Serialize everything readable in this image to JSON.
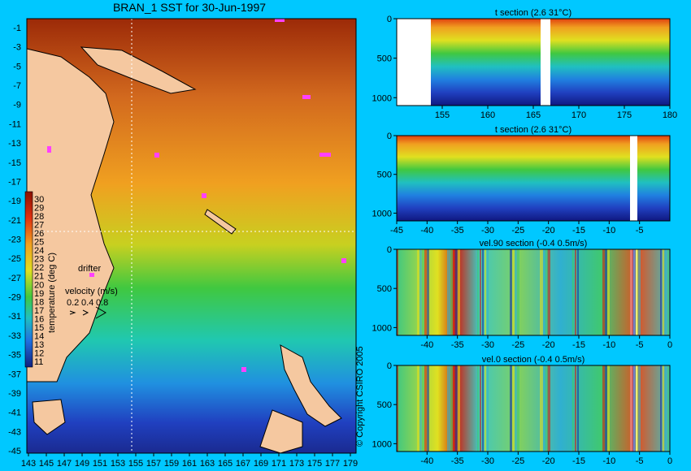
{
  "map": {
    "title": "BRAN_1 SST for 30-Jun-1997",
    "lon_ticks": [
      "143",
      "145",
      "147",
      "149",
      "151",
      "153",
      "155",
      "157",
      "159",
      "161",
      "163",
      "165",
      "167",
      "169",
      "171",
      "173",
      "175",
      "177",
      "179"
    ],
    "lat_ticks": [
      "-1",
      "-3",
      "-5",
      "-7",
      "-9",
      "-11",
      "-13",
      "-15",
      "-17",
      "-19",
      "-21",
      "-23",
      "-25",
      "-27",
      "-29",
      "-31",
      "-33",
      "-35",
      "-37",
      "-39",
      "-41",
      "-43",
      "-45"
    ],
    "colorbar_label": "temperature (deg C)",
    "colorbar_ticks": [
      "30",
      "29",
      "28",
      "27",
      "26",
      "25",
      "24",
      "23",
      "22",
      "21",
      "20",
      "19",
      "18",
      "17",
      "16",
      "15",
      "14",
      "13",
      "12",
      "11"
    ],
    "drifter_label": "drifter",
    "velocity_label": "velocity (m/s)",
    "velocity_ticks": [
      "0.2",
      "0.4",
      "0.8"
    ],
    "copyright": "© Copyright CSIRO 2005",
    "colors": {
      "ocean_warm": "#d2691e",
      "ocean_cold": "#1e3cc8",
      "land": "#f5c8a0",
      "background": "#00c8ff",
      "drifter": "#ff40ff"
    }
  },
  "chart_data": [
    {
      "type": "heatmap",
      "title": "t section (2.6     31°C)",
      "x_ticks": [
        "155",
        "160",
        "165",
        "170",
        "175",
        "180"
      ],
      "y_ticks": [
        "0",
        "500",
        "1000"
      ],
      "xlim": [
        150,
        180
      ],
      "ylim": [
        1100,
        0
      ]
    },
    {
      "type": "heatmap",
      "title": "t section (2.6     31°C)",
      "x_ticks": [
        "-45",
        "-40",
        "-35",
        "-30",
        "-25",
        "-20",
        "-15",
        "-10",
        "-5"
      ],
      "y_ticks": [
        "0",
        "500",
        "1000"
      ],
      "xlim": [
        -45,
        0
      ],
      "ylim": [
        1100,
        0
      ]
    },
    {
      "type": "heatmap",
      "title": "vel.90 section (-0.4     0.5m/s)",
      "x_ticks": [
        "-40",
        "-35",
        "-30",
        "-25",
        "-20",
        "-15",
        "-10",
        "-5",
        "0"
      ],
      "y_ticks": [
        "0",
        "500",
        "1000"
      ],
      "xlim": [
        -45,
        0
      ],
      "ylim": [
        1100,
        0
      ]
    },
    {
      "type": "heatmap",
      "title": "vel.0 section (-0.4     0.5m/s)",
      "x_ticks": [
        "-40",
        "-35",
        "-30",
        "-25",
        "-20",
        "-15",
        "-10",
        "-5",
        "0"
      ],
      "y_ticks": [
        "0",
        "500",
        "1000"
      ],
      "xlim": [
        -45,
        0
      ],
      "ylim": [
        1100,
        0
      ]
    }
  ]
}
